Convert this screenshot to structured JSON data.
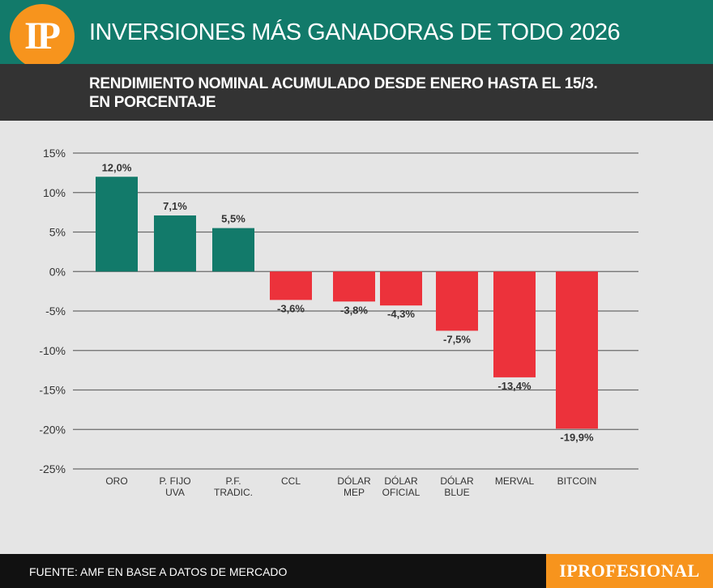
{
  "header": {
    "logo_text": "IP",
    "title": "INVERSIONES MÁS GANADORAS DE TODO 2026",
    "accent_color": "#127a6a",
    "logo_color": "#f7941d"
  },
  "subheader": {
    "line1": "RENDIMIENTO NOMINAL ACUMULADO DESDE ENERO HASTA EL 15/3.",
    "line2": "EN PORCENTAJE"
  },
  "chart_data": {
    "type": "bar",
    "title": "INVERSIONES MÁS GANADORAS DE TODO 2026",
    "subtitle": "RENDIMIENTO NOMINAL ACUMULADO DESDE ENERO HASTA EL 15/3. EN PORCENTAJE",
    "categories": [
      [
        "ORO"
      ],
      [
        "P. FIJO",
        "UVA"
      ],
      [
        "P.F.",
        "TRADIC."
      ],
      [
        "CCL"
      ],
      [
        "DÓLAR",
        "MEP"
      ],
      [
        "DÓLAR",
        "OFICIAL"
      ],
      [
        "DÓLAR",
        "BLUE"
      ],
      [
        "MERVAL"
      ],
      [
        "BITCOIN"
      ]
    ],
    "values": [
      12.0,
      7.1,
      5.5,
      -3.6,
      -3.8,
      -4.3,
      -7.5,
      -13.4,
      -19.9
    ],
    "value_labels": [
      "12,0%",
      "7,1%",
      "5,5%",
      "-3,6%",
      "-3,8%",
      "-4,3%",
      "-7,5%",
      "-13,4%",
      "-19,9%"
    ],
    "yticks": [
      15,
      10,
      5,
      0,
      -5,
      -10,
      -15,
      -20,
      -25
    ],
    "ytick_labels": [
      "15%",
      "10%",
      "5%",
      "0%",
      "-5%",
      "-10%",
      "-15%",
      "-20%",
      "-25%"
    ],
    "ylim": [
      -25,
      15
    ],
    "xlabel": "",
    "ylabel": "",
    "grid": true,
    "positive_color": "#127a6a",
    "negative_color": "#ec323b"
  },
  "footer": {
    "source": "FUENTE: AMF EN BASE A DATOS DE MERCADO",
    "brand": "IPROFESIONAL"
  }
}
